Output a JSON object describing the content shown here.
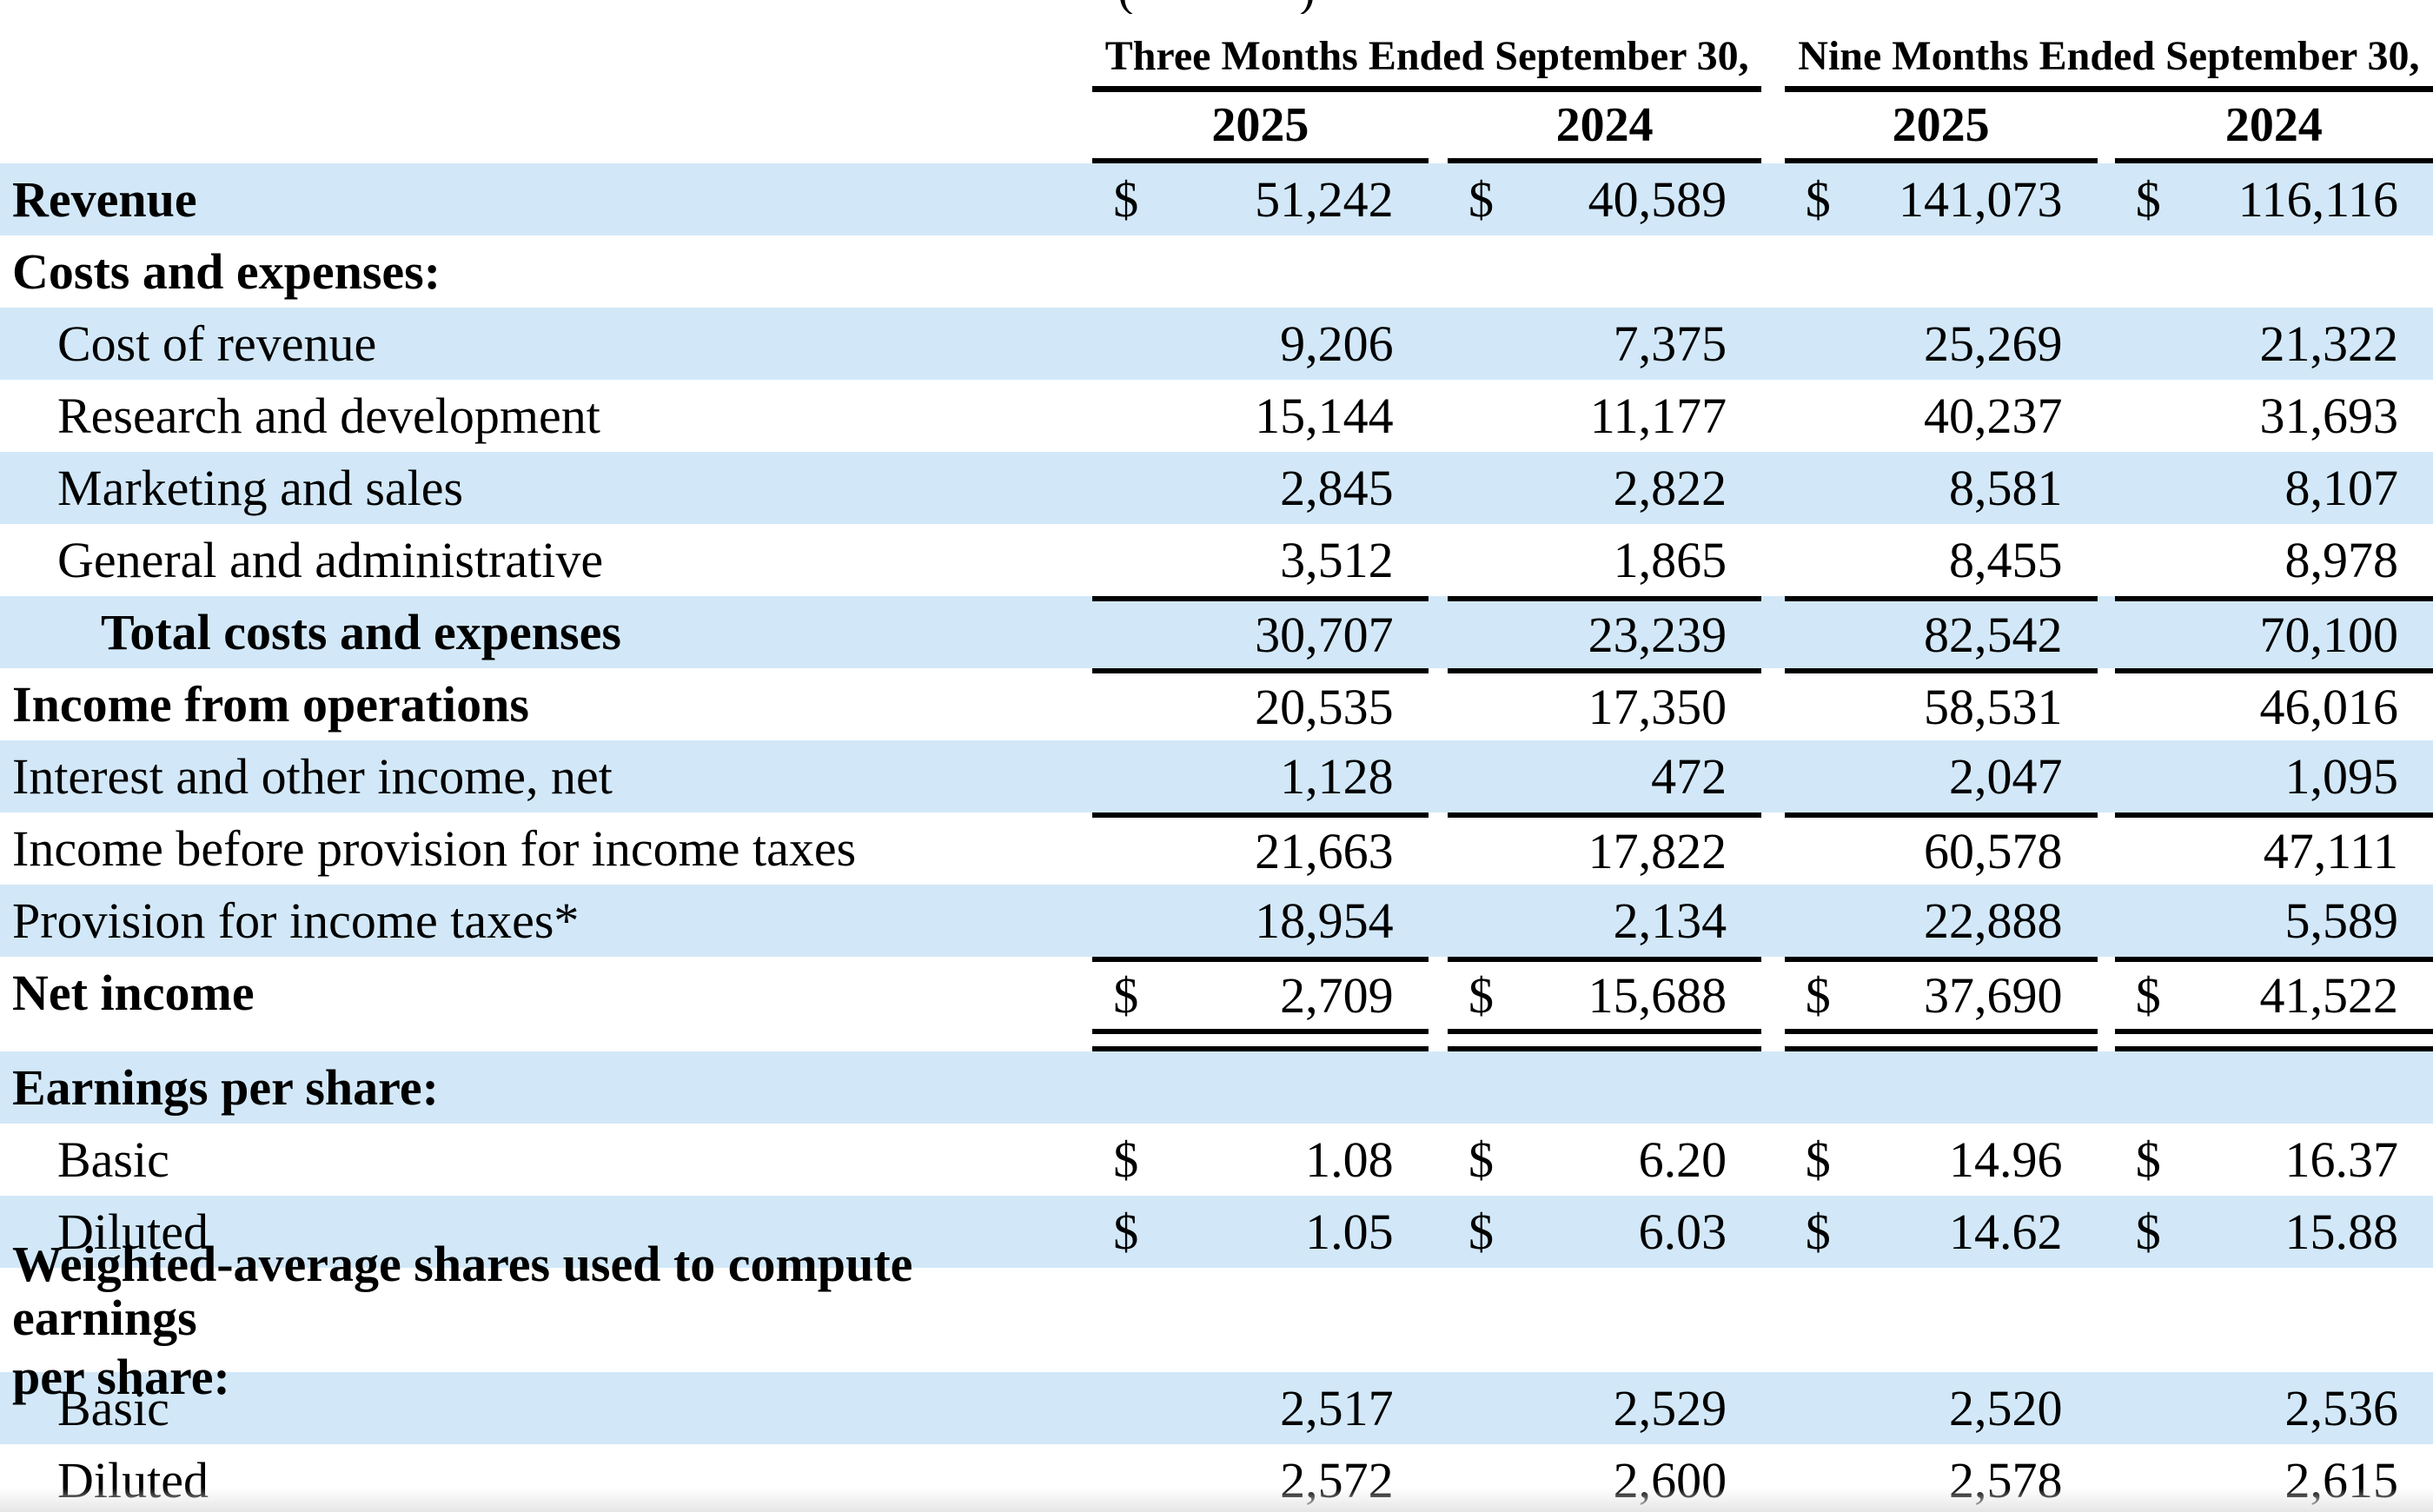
{
  "page": {
    "top_fragment_left": "(",
    "top_fragment_right": ")",
    "colors": {
      "row_highlight": "#d2e8f8",
      "rule": "#000000",
      "bottom_fade": "#e6e6e6"
    }
  },
  "table": {
    "currency_symbol": "$",
    "period_headers": [
      {
        "label": "Three Months Ended September 30,"
      },
      {
        "label": "Nine Months Ended September 30,"
      }
    ],
    "year_headers": [
      "2025",
      "2024",
      "2025",
      "2024"
    ],
    "rows": [
      {
        "label": "Revenue",
        "bold": true,
        "indent": 0,
        "bg": "blue",
        "dollar": true,
        "values": [
          "51,242",
          "40,589",
          "141,073",
          "116,116"
        ]
      },
      {
        "label": "Costs and expenses:",
        "bold": true,
        "indent": 0,
        "bg": "white"
      },
      {
        "label": "Cost of revenue",
        "bold": false,
        "indent": 1,
        "bg": "blue",
        "values": [
          "9,206",
          "7,375",
          "25,269",
          "21,322"
        ]
      },
      {
        "label": "Research and development",
        "bold": false,
        "indent": 1,
        "bg": "white",
        "values": [
          "15,144",
          "11,177",
          "40,237",
          "31,693"
        ]
      },
      {
        "label": "Marketing and sales",
        "bold": false,
        "indent": 1,
        "bg": "blue",
        "values": [
          "2,845",
          "2,822",
          "8,581",
          "8,107"
        ]
      },
      {
        "label": "General and administrative",
        "bold": false,
        "indent": 1,
        "bg": "white",
        "values": [
          "3,512",
          "1,865",
          "8,455",
          "8,978"
        ]
      },
      {
        "label": "Total costs and expenses",
        "bold": true,
        "indent": 2,
        "bg": "blue",
        "rule_top": true,
        "values": [
          "30,707",
          "23,239",
          "82,542",
          "70,100"
        ]
      },
      {
        "label": "Income from operations",
        "bold": true,
        "indent": 0,
        "bg": "white",
        "rule_top": true,
        "values": [
          "20,535",
          "17,350",
          "58,531",
          "46,016"
        ]
      },
      {
        "label": "Interest and other income, net",
        "bold": false,
        "indent": 0,
        "bg": "blue",
        "values": [
          "1,128",
          "472",
          "2,047",
          "1,095"
        ]
      },
      {
        "label": "Income before provision for income taxes",
        "bold": false,
        "indent": 0,
        "bg": "white",
        "rule_top": true,
        "values": [
          "21,663",
          "17,822",
          "60,578",
          "47,111"
        ]
      },
      {
        "label": "Provision for income taxes*",
        "bold": false,
        "indent": 0,
        "bg": "blue",
        "values": [
          "18,954",
          "2,134",
          "22,888",
          "5,589"
        ]
      },
      {
        "label": "Net income",
        "bold": true,
        "indent": 0,
        "bg": "white",
        "rule_top": true,
        "dollar": true,
        "double_rule_below": true,
        "values": [
          "2,709",
          "15,688",
          "37,690",
          "41,522"
        ]
      },
      {
        "label": "Earnings per share:",
        "bold": true,
        "indent": 0,
        "bg": "blue"
      },
      {
        "label": "Basic",
        "bold": false,
        "indent": 1,
        "bg": "white",
        "dollar": true,
        "values": [
          "1.08",
          "6.20",
          "14.96",
          "16.37"
        ]
      },
      {
        "label": "Diluted",
        "bold": false,
        "indent": 1,
        "bg": "blue",
        "dollar": true,
        "values": [
          "1.05",
          "6.03",
          "14.62",
          "15.88"
        ]
      },
      {
        "label_lines": [
          "Weighted-average shares used to compute earnings",
          "per share:"
        ],
        "bold": true,
        "indent": 0,
        "bg": "white",
        "tall": true
      },
      {
        "label": "Basic",
        "bold": false,
        "indent": 1,
        "bg": "blue",
        "values": [
          "2,517",
          "2,529",
          "2,520",
          "2,536"
        ]
      },
      {
        "label": "Diluted",
        "bold": false,
        "indent": 1,
        "bg": "white",
        "values": [
          "2,572",
          "2,600",
          "2,578",
          "2,615"
        ]
      }
    ]
  }
}
